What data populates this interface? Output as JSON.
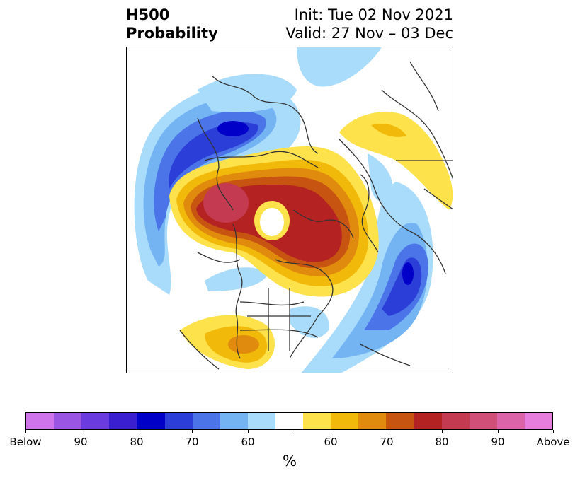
{
  "title": {
    "left_line1": "H500",
    "left_line2": "Probability",
    "right_line1": "Init: Tue 02 Nov 2021",
    "right_line2": "Valid: 27 Nov – 03 Dec"
  },
  "map": {
    "projection": "polar stereographic (North Pole)",
    "field": "500 hPa height anomaly probability",
    "below_colors": [
      "#a9dbfb",
      "#74b4f3",
      "#4a74e8",
      "#2b3fd8",
      "#0000c8",
      "#3a1fd0",
      "#6a3cdf",
      "#9a55e3",
      "#d074eb"
    ],
    "above_colors": [
      "#fde24b",
      "#f1b90a",
      "#e08a0e",
      "#c85412",
      "#b42222",
      "#c43a50",
      "#cf4f78",
      "#db64a8",
      "#e77ddc"
    ],
    "neutral_color": "#ffffff",
    "coastline_color": "#333333"
  },
  "colorbar": {
    "colors": [
      "#d074eb",
      "#9a55e3",
      "#6a3cdf",
      "#3a1fd0",
      "#0000c8",
      "#2b3fd8",
      "#4a74e8",
      "#74b4f3",
      "#a9dbfb",
      "#ffffff",
      "#fde24b",
      "#f1b90a",
      "#e08a0e",
      "#c85412",
      "#b42222",
      "#c43a50",
      "#cf4f78",
      "#db64a8",
      "#e77ddc"
    ],
    "tick_labels": [
      "Below",
      "90",
      "80",
      "70",
      "60",
      "",
      "60",
      "70",
      "80",
      "90",
      "Above"
    ],
    "unit_label": "%"
  }
}
